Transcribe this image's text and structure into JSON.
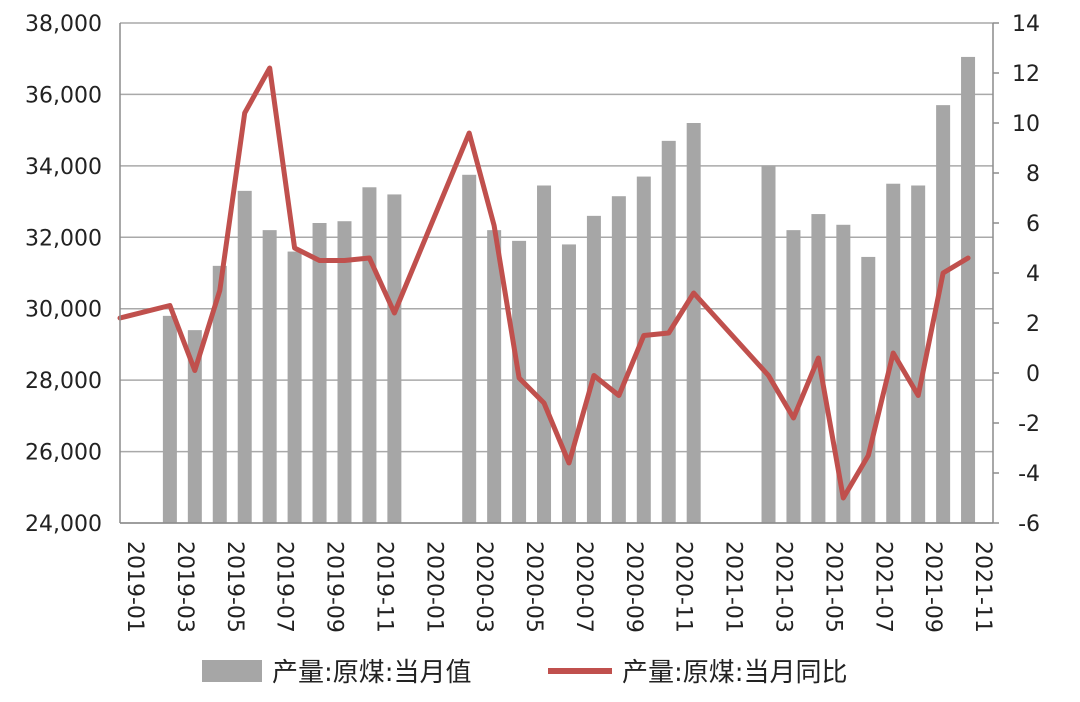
{
  "chart_data": {
    "type": "bar",
    "categories": [
      "2019-01",
      "2019-02",
      "2019-03",
      "2019-04",
      "2019-05",
      "2019-06",
      "2019-07",
      "2019-08",
      "2019-09",
      "2019-10",
      "2019-11",
      "2019-12",
      "2020-01",
      "2020-02",
      "2020-03",
      "2020-04",
      "2020-05",
      "2020-06",
      "2020-07",
      "2020-08",
      "2020-09",
      "2020-10",
      "2020-11",
      "2020-12",
      "2021-01",
      "2021-02",
      "2021-03",
      "2021-04",
      "2021-05",
      "2021-06",
      "2021-07",
      "2021-08",
      "2021-09",
      "2021-10",
      "2021-11",
      "2021-12"
    ],
    "x_tick_labels": [
      "2019-01",
      "2019-03",
      "2019-05",
      "2019-07",
      "2019-09",
      "2019-11",
      "2020-01",
      "2020-03",
      "2020-05",
      "2020-07",
      "2020-09",
      "2020-11",
      "2021-01",
      "2021-03",
      "2021-05",
      "2021-07",
      "2021-09",
      "2021-11"
    ],
    "series": [
      {
        "name": "产量:原煤:当月值",
        "type": "bar",
        "axis": "left",
        "color": "#a6a6a6",
        "values": [
          null,
          null,
          29800,
          29400,
          31200,
          33300,
          32200,
          31600,
          32400,
          32450,
          33400,
          33200,
          null,
          null,
          33750,
          32200,
          31900,
          33450,
          31800,
          32600,
          33150,
          33700,
          34700,
          35200,
          null,
          null,
          34000,
          32200,
          32650,
          32350,
          31450,
          33500,
          33450,
          35700,
          37050,
          null
        ]
      },
      {
        "name": "产量:原煤:当月同比",
        "type": "line",
        "axis": "right",
        "color": "#c0504d",
        "values": [
          2.2,
          null,
          2.7,
          0.1,
          3.3,
          10.4,
          12.2,
          5.0,
          4.5,
          4.5,
          4.6,
          2.4,
          null,
          null,
          9.6,
          5.9,
          -0.2,
          -1.2,
          -3.6,
          -0.1,
          -0.9,
          1.5,
          1.6,
          3.2,
          null,
          null,
          -0.1,
          -1.8,
          0.6,
          -5.0,
          -3.3,
          0.8,
          -0.9,
          4.0,
          4.6,
          null
        ]
      }
    ],
    "y_left": {
      "range": [
        24000,
        38000
      ],
      "ticks": [
        "24,000",
        "26,000",
        "28,000",
        "30,000",
        "32,000",
        "34,000",
        "36,000",
        "38,000"
      ]
    },
    "y_right": {
      "range": [
        -6,
        14
      ],
      "ticks": [
        "-6",
        "-4",
        "-2",
        "0",
        "2",
        "4",
        "6",
        "8",
        "10",
        "12",
        "14"
      ]
    },
    "grid": "horizontal",
    "legend_position": "bottom",
    "title": "",
    "xlabel": "",
    "ylabel": ""
  }
}
